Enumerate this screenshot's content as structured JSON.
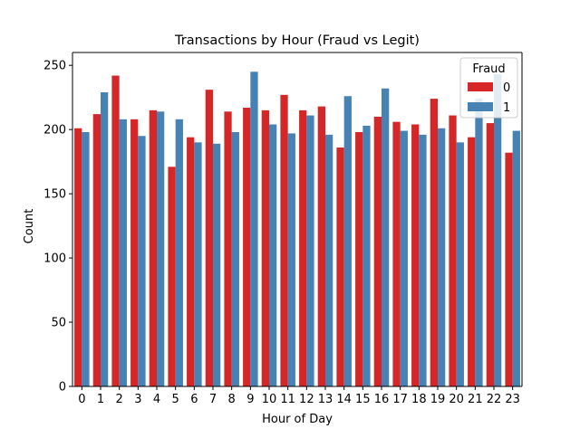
{
  "chart_data": {
    "type": "bar",
    "title": "Transactions by Hour (Fraud vs Legit)",
    "xlabel": "Hour of Day",
    "ylabel": "Count",
    "ylim": [
      0,
      260
    ],
    "yticks": [
      0,
      50,
      100,
      150,
      200,
      250
    ],
    "categories": [
      "0",
      "1",
      "2",
      "3",
      "4",
      "5",
      "6",
      "7",
      "8",
      "9",
      "10",
      "11",
      "12",
      "13",
      "14",
      "15",
      "16",
      "17",
      "18",
      "19",
      "20",
      "21",
      "22",
      "23"
    ],
    "series": [
      {
        "name": "0",
        "color": "#d62728",
        "values": [
          201,
          212,
          242,
          208,
          215,
          171,
          194,
          231,
          214,
          217,
          215,
          227,
          215,
          218,
          186,
          198,
          210,
          206,
          204,
          224,
          211,
          194,
          205,
          182
        ]
      },
      {
        "name": "1",
        "color": "#4682b4",
        "values": [
          198,
          229,
          208,
          195,
          214,
          208,
          190,
          189,
          198,
          245,
          204,
          197,
          211,
          196,
          226,
          203,
          232,
          199,
          196,
          201,
          190,
          224,
          243,
          199
        ]
      }
    ],
    "legend": {
      "title": "Fraud",
      "placement": "top-right"
    },
    "grid": false
  }
}
